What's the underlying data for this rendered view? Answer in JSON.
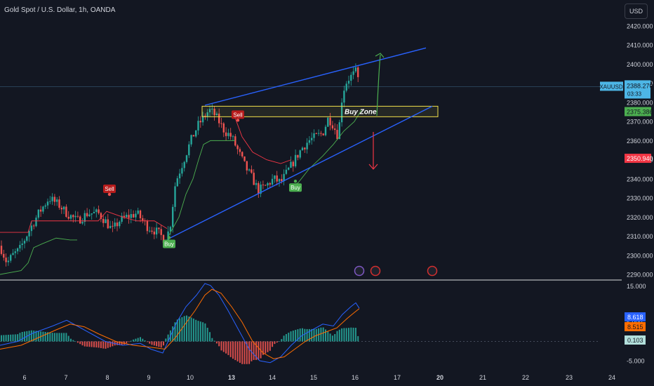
{
  "header": {
    "symbol_title": "Gold Spot / U.S. Dollar, 1h, OANDA",
    "currency_button": "USD"
  },
  "chart_data": [
    {
      "type": "candlestick",
      "title": "Gold Spot / U.S. Dollar, 1h, OANDA",
      "y_ticks": [
        2420,
        2410,
        2400,
        2390,
        2380,
        2370,
        2360,
        2350,
        2340,
        2330,
        2320,
        2310,
        2300,
        2290
      ],
      "y_tick_labels": [
        "2420.000",
        "2410.000",
        "2400.000",
        "2390.000",
        "2380.000",
        "2370.000",
        "2360.000",
        "2350.000",
        "2340.000",
        "2330.000",
        "2320.000",
        "2310.000",
        "2300.000",
        "2290.000"
      ],
      "ylim": [
        2288,
        2424
      ],
      "x_labels": [
        "6",
        "7",
        "8",
        "9",
        "10",
        "13",
        "14",
        "15",
        "16",
        "17",
        "20",
        "21",
        "22",
        "23",
        "24"
      ],
      "price_markers": {
        "last": {
          "symbol": "XAUUSD",
          "value": "2388.270",
          "countdown": "03:33",
          "price": 2388.27
        },
        "upper_stop": {
          "value": "2375.386",
          "price": 2375.386
        },
        "lower_stop": {
          "value": "2350.940",
          "price": 2350.94
        }
      },
      "annotations": {
        "buy_zone": {
          "label": "Buy Zone",
          "price_low": 2372.5,
          "price_high": 2378.0
        },
        "signals": [
          {
            "label": "Sell",
            "price": 2331.5
          },
          {
            "label": "Buy",
            "price": 2310.0
          },
          {
            "label": "Sell",
            "price": 2370.3
          },
          {
            "label": "Buy",
            "price": 2339.5
          }
        ]
      },
      "colors": {
        "bull": "#26a69a",
        "bear": "#ef5350",
        "trendline": "#2962ff",
        "zone": "#f2e04b",
        "up_arrow": "#4caf50",
        "down_arrow": "#f23645",
        "stop_up": "#4caf50",
        "stop_down": "#f23645"
      },
      "grid": false
    },
    {
      "type": "macd",
      "y_tick_labels": [
        "15.000",
        "5.000",
        "-5.000"
      ],
      "y_ticks": [
        15,
        5,
        -5
      ],
      "ylim": [
        -6,
        15
      ],
      "values": {
        "macd": "8.618",
        "signal": "8.515",
        "histogram": "0.103"
      },
      "colors": {
        "macd": "#2962ff",
        "signal": "#ff6d00",
        "hist_pos": "#26a69a",
        "hist_neg": "#ef5350"
      }
    }
  ]
}
